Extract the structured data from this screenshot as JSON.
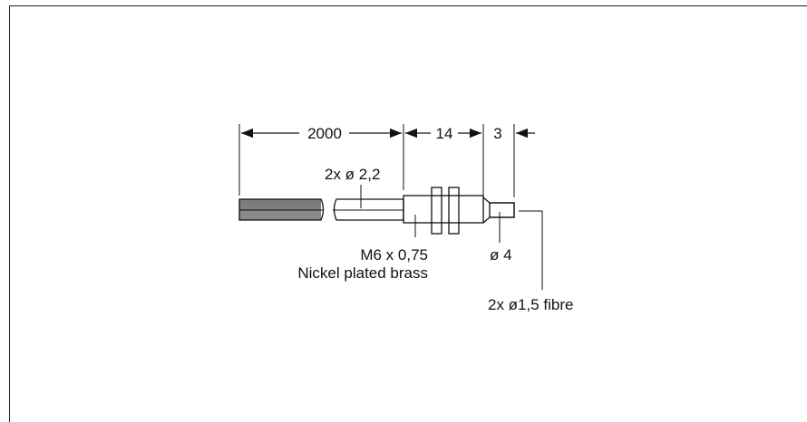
{
  "dimensions": {
    "cable_length": "2000",
    "body_length": "14",
    "tip_length": "3"
  },
  "labels": {
    "cable_diameter": "2x ø 2,2",
    "thread": "M6 x 0,75",
    "material": "Nickel plated brass",
    "tip_diameter": "ø 4",
    "fibre": "2x ø1,5 fibre"
  },
  "colors": {
    "dark_grey": "#7d7d7d",
    "light_grey": "#c8c8c8",
    "line": "#111111"
  }
}
